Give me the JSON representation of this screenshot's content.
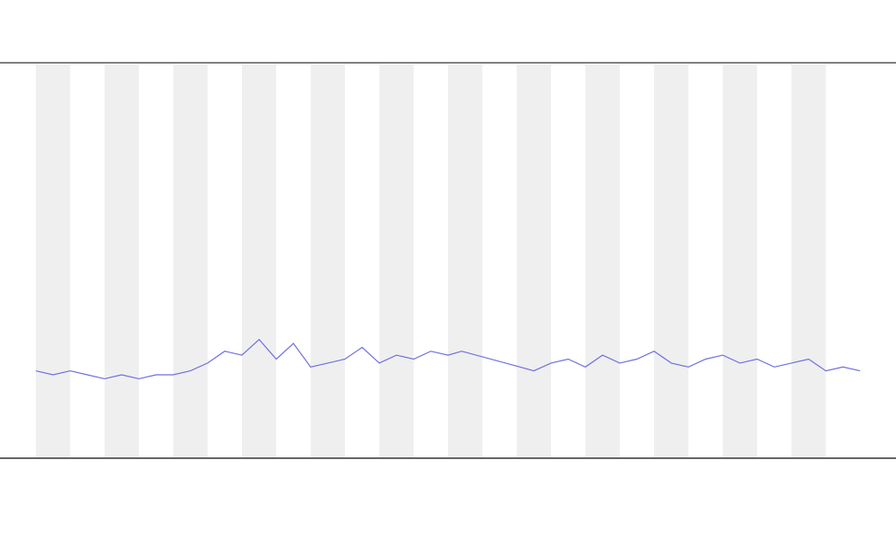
{
  "chart_data": {
    "type": "line",
    "x": [
      0,
      5,
      10,
      15,
      20,
      25,
      30,
      35,
      40,
      45,
      50,
      55,
      60,
      65,
      70,
      75,
      80,
      85,
      90,
      95,
      100,
      105,
      110,
      115,
      120,
      124,
      141,
      145,
      150,
      155,
      160,
      165,
      170,
      175,
      180,
      185,
      190,
      195,
      200,
      205,
      210,
      215,
      220,
      225,
      230,
      235,
      240
    ],
    "series": [
      {
        "color": "#6f6fe0",
        "values": [
          22,
          21,
          22,
          21,
          20,
          21,
          20,
          21,
          21,
          22,
          24,
          27,
          26,
          30,
          25,
          29,
          23,
          24,
          25,
          28,
          24,
          26,
          25,
          27,
          26,
          27,
          23,
          22,
          24,
          25,
          23,
          26,
          24,
          25,
          27,
          24,
          23,
          25,
          26,
          24,
          25,
          23,
          24,
          25,
          22,
          23,
          22
        ]
      }
    ],
    "xlim": [
      0,
      240
    ],
    "ylim": [
      0,
      100
    ]
  }
}
